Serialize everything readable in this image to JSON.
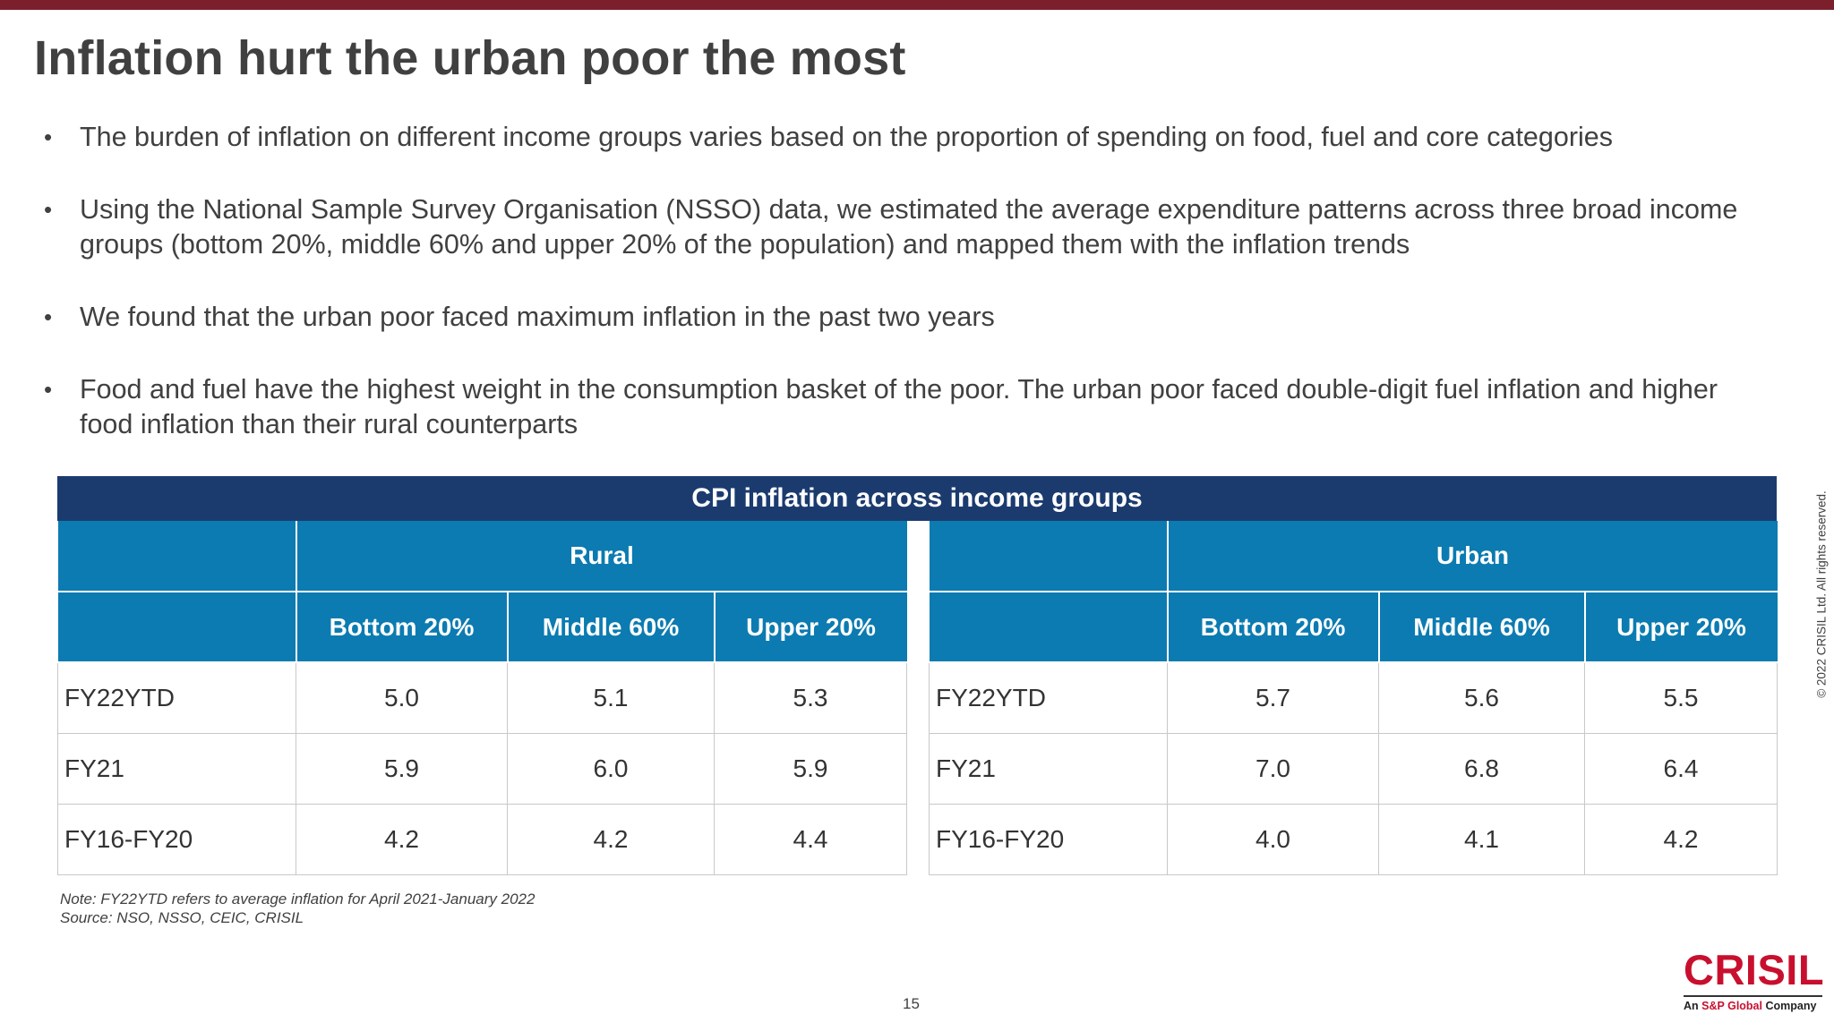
{
  "title": "Inflation hurt the urban poor the most",
  "bullets": [
    "The burden of inflation on different income groups varies based on the proportion of spending on food, fuel and core categories",
    "Using the National Sample Survey Organisation (NSSO) data, we estimated the average expenditure patterns across three broad income groups (bottom 20%, middle 60% and upper 20% of the population) and mapped them with the inflation trends",
    "We found that the urban poor faced maximum inflation in the past two years",
    "Food and fuel have the highest weight in the consumption basket of the poor. The urban poor faced double-digit fuel inflation and higher food inflation than their rural counterparts"
  ],
  "table": {
    "title": "CPI inflation across income groups",
    "columns": [
      "Bottom 20%",
      "Middle 60%",
      "Upper 20%"
    ],
    "rural": {
      "label": "Rural",
      "rows": [
        {
          "period": "FY22YTD",
          "values": [
            "5.0",
            "5.1",
            "5.3"
          ]
        },
        {
          "period": "FY21",
          "values": [
            "5.9",
            "6.0",
            "5.9"
          ]
        },
        {
          "period": "FY16-FY20",
          "values": [
            "4.2",
            "4.2",
            "4.4"
          ]
        }
      ]
    },
    "urban": {
      "label": "Urban",
      "rows": [
        {
          "period": "FY22YTD",
          "values": [
            "5.7",
            "5.6",
            "5.5"
          ]
        },
        {
          "period": "FY21",
          "values": [
            "7.0",
            "6.8",
            "6.4"
          ]
        },
        {
          "period": "FY16-FY20",
          "values": [
            "4.0",
            "4.1",
            "4.2"
          ]
        }
      ]
    }
  },
  "note": "Note: FY22YTD refers to average inflation for April 2021-January 2022",
  "source": "Source: NSO, NSSO, CEIC, CRISIL",
  "page_number": "15",
  "copyright": "© 2022 CRISIL Ltd. All rights reserved.",
  "logo": {
    "name": "CRISIL",
    "tag_prefix": "An ",
    "tag_brand": "S&P Global",
    "tag_suffix": " Company"
  },
  "colors": {
    "top_bar": "#7a1f2b",
    "table_title_bg": "#1b3b6f",
    "table_header_bg": "#0c7bb1",
    "logo_red": "#c8102e"
  }
}
